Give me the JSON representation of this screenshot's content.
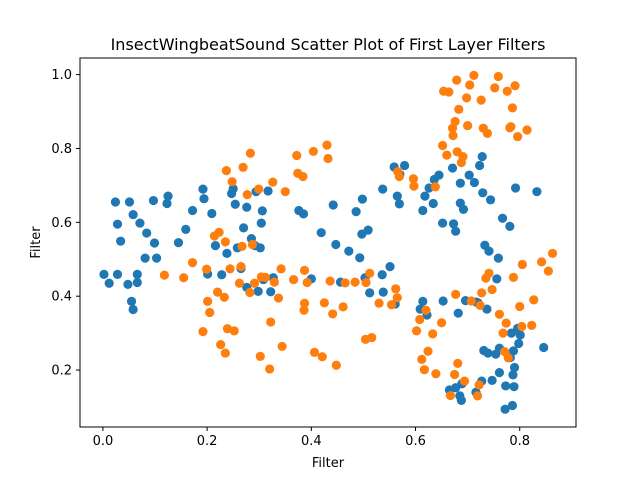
{
  "chart_data": {
    "type": "scatter",
    "title": "InsectWingbeatSound Scatter Plot of First Layer Filters",
    "xlabel": "Filter",
    "ylabel": "Filter",
    "xlim": [
      -0.044,
      0.908
    ],
    "ylim": [
      0.0458,
      1.045
    ],
    "xticks": [
      0.0,
      0.2,
      0.4,
      0.6,
      0.8
    ],
    "xtick_labels": [
      "0.0",
      "0.2",
      "0.4",
      "0.6",
      "0.8"
    ],
    "yticks": [
      0.2,
      0.4,
      0.6,
      0.8,
      1.0
    ],
    "ytick_labels": [
      "0.2",
      "0.4",
      "0.6",
      "0.8",
      "1.0"
    ],
    "grid": false,
    "legend": "none",
    "series": [
      {
        "color": "#1f77b4",
        "points": [
          [
            0.002,
            0.459
          ],
          [
            0.012,
            0.435
          ],
          [
            0.024,
            0.655
          ],
          [
            0.028,
            0.595
          ],
          [
            0.028,
            0.459
          ],
          [
            0.034,
            0.549
          ],
          [
            0.048,
            0.432
          ],
          [
            0.051,
            0.655
          ],
          [
            0.055,
            0.386
          ],
          [
            0.058,
            0.621
          ],
          [
            0.058,
            0.364
          ],
          [
            0.066,
            0.459
          ],
          [
            0.066,
            0.437
          ],
          [
            0.071,
            0.598
          ],
          [
            0.081,
            0.503
          ],
          [
            0.084,
            0.571
          ],
          [
            0.097,
            0.659
          ],
          [
            0.099,
            0.544
          ],
          [
            0.103,
            0.503
          ],
          [
            0.123,
            0.651
          ],
          [
            0.125,
            0.671
          ],
          [
            0.145,
            0.545
          ],
          [
            0.159,
            0.581
          ],
          [
            0.172,
            0.632
          ],
          [
            0.192,
            0.69
          ],
          [
            0.194,
            0.664
          ],
          [
            0.201,
            0.46
          ],
          [
            0.209,
            0.624
          ],
          [
            0.216,
            0.537
          ],
          [
            0.228,
            0.458
          ],
          [
            0.238,
            0.516
          ],
          [
            0.247,
            0.678
          ],
          [
            0.25,
            0.691
          ],
          [
            0.254,
            0.649
          ],
          [
            0.258,
            0.531
          ],
          [
            0.265,
            0.475
          ],
          [
            0.27,
            0.585
          ],
          [
            0.276,
            0.424
          ],
          [
            0.276,
            0.641
          ],
          [
            0.285,
            0.556
          ],
          [
            0.292,
            0.537
          ],
          [
            0.294,
            0.683
          ],
          [
            0.298,
            0.413
          ],
          [
            0.302,
            0.531
          ],
          [
            0.304,
            0.598
          ],
          [
            0.306,
            0.631
          ],
          [
            0.308,
            0.445
          ],
          [
            0.317,
            0.685
          ],
          [
            0.322,
            0.412
          ],
          [
            0.327,
            0.45
          ],
          [
            0.376,
            0.632
          ],
          [
            0.385,
            0.623
          ],
          [
            0.4,
            0.447
          ],
          [
            0.419,
            0.572
          ],
          [
            0.442,
            0.647
          ],
          [
            0.447,
            0.54
          ],
          [
            0.456,
            0.438
          ],
          [
            0.472,
            0.522
          ],
          [
            0.486,
            0.629
          ],
          [
            0.493,
            0.504
          ],
          [
            0.497,
            0.568
          ],
          [
            0.498,
            0.663
          ],
          [
            0.503,
            0.45
          ],
          [
            0.509,
            0.579
          ],
          [
            0.512,
            0.409
          ],
          [
            0.536,
            0.458
          ],
          [
            0.538,
            0.411
          ],
          [
            0.537,
            0.69
          ],
          [
            0.551,
            0.48
          ],
          [
            0.559,
            0.75
          ],
          [
            0.561,
            0.379
          ],
          [
            0.565,
            0.671
          ],
          [
            0.569,
            0.65
          ],
          [
            0.57,
            0.73
          ],
          [
            0.579,
            0.754
          ],
          [
            0.609,
            0.365
          ],
          [
            0.614,
            0.386
          ],
          [
            0.614,
            0.632
          ],
          [
            0.618,
            0.671
          ],
          [
            0.622,
            0.349
          ],
          [
            0.626,
            0.693
          ],
          [
            0.634,
            0.651
          ],
          [
            0.636,
            0.716
          ],
          [
            0.645,
            0.728
          ],
          [
            0.652,
            0.598
          ],
          [
            0.653,
            0.387
          ],
          [
            0.665,
            0.146
          ],
          [
            0.671,
            0.747
          ],
          [
            0.673,
            0.596
          ],
          [
            0.677,
            0.576
          ],
          [
            0.677,
            0.152
          ],
          [
            0.682,
            0.354
          ],
          [
            0.685,
            0.13
          ],
          [
            0.686,
            0.652
          ],
          [
            0.686,
            0.706
          ],
          [
            0.688,
            0.118
          ],
          [
            0.689,
            0.163
          ],
          [
            0.69,
            0.164
          ],
          [
            0.692,
            0.635
          ],
          [
            0.696,
            0.388
          ],
          [
            0.703,
            0.728
          ],
          [
            0.713,
            0.708
          ],
          [
            0.716,
            0.14
          ],
          [
            0.717,
            0.384
          ],
          [
            0.72,
            0.382
          ],
          [
            0.723,
            0.754
          ],
          [
            0.727,
            0.17
          ],
          [
            0.728,
            0.778
          ],
          [
            0.729,
            0.68
          ],
          [
            0.731,
            0.253
          ],
          [
            0.733,
            0.538
          ],
          [
            0.737,
            0.365
          ],
          [
            0.739,
            0.246
          ],
          [
            0.741,
            0.522
          ],
          [
            0.744,
            0.661
          ],
          [
            0.747,
            0.172
          ],
          [
            0.754,
            0.243
          ],
          [
            0.756,
            0.447
          ],
          [
            0.759,
            0.503
          ],
          [
            0.761,
            0.193
          ],
          [
            0.761,
            0.259
          ],
          [
            0.767,
            0.611
          ],
          [
            0.772,
            0.094
          ],
          [
            0.773,
            0.157
          ],
          [
            0.781,
            0.589
          ],
          [
            0.782,
            0.234
          ],
          [
            0.784,
            0.3
          ],
          [
            0.786,
            0.104
          ],
          [
            0.787,
            0.187
          ],
          [
            0.788,
            0.252
          ],
          [
            0.789,
            0.155
          ],
          [
            0.79,
            0.207
          ],
          [
            0.792,
            0.693
          ],
          [
            0.796,
            0.313
          ],
          [
            0.798,
            0.272
          ],
          [
            0.801,
            0.295
          ],
          [
            0.833,
            0.683
          ],
          [
            0.846,
            0.261
          ]
        ]
      },
      {
        "color": "#ff7f0e",
        "points": [
          [
            0.118,
            0.457
          ],
          [
            0.155,
            0.45
          ],
          [
            0.172,
            0.491
          ],
          [
            0.192,
            0.304
          ],
          [
            0.199,
            0.473
          ],
          [
            0.201,
            0.386
          ],
          [
            0.205,
            0.356
          ],
          [
            0.214,
            0.563
          ],
          [
            0.22,
            0.411
          ],
          [
            0.223,
            0.573
          ],
          [
            0.226,
            0.269
          ],
          [
            0.233,
            0.397
          ],
          [
            0.235,
            0.246
          ],
          [
            0.235,
            0.547
          ],
          [
            0.237,
            0.74
          ],
          [
            0.239,
            0.312
          ],
          [
            0.244,
            0.474
          ],
          [
            0.248,
            0.71
          ],
          [
            0.252,
            0.306
          ],
          [
            0.262,
            0.435
          ],
          [
            0.265,
            0.48
          ],
          [
            0.267,
            0.535
          ],
          [
            0.269,
            0.749
          ],
          [
            0.277,
            0.675
          ],
          [
            0.282,
            0.41
          ],
          [
            0.283,
            0.787
          ],
          [
            0.287,
            0.54
          ],
          [
            0.291,
            0.435
          ],
          [
            0.299,
            0.69
          ],
          [
            0.302,
            0.237
          ],
          [
            0.304,
            0.452
          ],
          [
            0.312,
            0.451
          ],
          [
            0.32,
            0.203
          ],
          [
            0.322,
            0.33
          ],
          [
            0.326,
            0.709
          ],
          [
            0.329,
            0.438
          ],
          [
            0.337,
            0.395
          ],
          [
            0.342,
            0.474
          ],
          [
            0.344,
            0.264
          ],
          [
            0.35,
            0.683
          ],
          [
            0.366,
            0.445
          ],
          [
            0.372,
            0.781
          ],
          [
            0.374,
            0.733
          ],
          [
            0.384,
            0.724
          ],
          [
            0.386,
            0.362
          ],
          [
            0.387,
            0.381
          ],
          [
            0.387,
            0.47
          ],
          [
            0.392,
            0.437
          ],
          [
            0.404,
            0.792
          ],
          [
            0.406,
            0.248
          ],
          [
            0.421,
            0.236
          ],
          [
            0.425,
            0.382
          ],
          [
            0.43,
            0.809
          ],
          [
            0.432,
            0.773
          ],
          [
            0.436,
            0.441
          ],
          [
            0.441,
            0.352
          ],
          [
            0.448,
            0.213
          ],
          [
            0.461,
            0.371
          ],
          [
            0.465,
            0.436
          ],
          [
            0.484,
            0.438
          ],
          [
            0.504,
            0.283
          ],
          [
            0.505,
            0.437
          ],
          [
            0.512,
            0.462
          ],
          [
            0.516,
            0.288
          ],
          [
            0.53,
            0.381
          ],
          [
            0.554,
            0.377
          ],
          [
            0.562,
            0.42
          ],
          [
            0.565,
            0.396
          ],
          [
            0.566,
            0.737
          ],
          [
            0.569,
            0.724
          ],
          [
            0.596,
            0.718
          ],
          [
            0.597,
            0.698
          ],
          [
            0.602,
            0.306
          ],
          [
            0.608,
            0.337
          ],
          [
            0.612,
            0.229
          ],
          [
            0.617,
            0.201
          ],
          [
            0.62,
            0.362
          ],
          [
            0.624,
            0.251
          ],
          [
            0.633,
            0.298
          ],
          [
            0.638,
            0.696
          ],
          [
            0.639,
            0.19
          ],
          [
            0.65,
            0.328
          ],
          [
            0.652,
            0.808
          ],
          [
            0.654,
            0.955
          ],
          [
            0.66,
            0.782
          ],
          [
            0.664,
            0.953
          ],
          [
            0.667,
            0.131
          ],
          [
            0.671,
            0.855
          ],
          [
            0.672,
            0.835
          ],
          [
            0.675,
            0.188
          ],
          [
            0.676,
            0.873
          ],
          [
            0.677,
            0.405
          ],
          [
            0.679,
            0.985
          ],
          [
            0.68,
            0.791
          ],
          [
            0.681,
            0.218
          ],
          [
            0.683,
            0.906
          ],
          [
            0.688,
            0.762
          ],
          [
            0.691,
            0.778
          ],
          [
            0.694,
            0.17
          ],
          [
            0.698,
            0.937
          ],
          [
            0.7,
            0.862
          ],
          [
            0.704,
            0.972
          ],
          [
            0.707,
            0.387
          ],
          [
            0.712,
            0.998
          ],
          [
            0.719,
            0.13
          ],
          [
            0.722,
            0.16
          ],
          [
            0.724,
            0.375
          ],
          [
            0.726,
            0.931
          ],
          [
            0.727,
            0.409
          ],
          [
            0.73,
            0.855
          ],
          [
            0.735,
            0.449
          ],
          [
            0.738,
            0.841
          ],
          [
            0.741,
            0.462
          ],
          [
            0.747,
            0.418
          ],
          [
            0.752,
            0.964
          ],
          [
            0.759,
            0.995
          ],
          [
            0.761,
            0.351
          ],
          [
            0.768,
            0.3
          ],
          [
            0.771,
            0.25
          ],
          [
            0.774,
            0.327
          ],
          [
            0.776,
            0.955
          ],
          [
            0.778,
            0.233
          ],
          [
            0.781,
            0.856
          ],
          [
            0.783,
            0.859
          ],
          [
            0.786,
            0.91
          ],
          [
            0.788,
            0.451
          ],
          [
            0.791,
            0.97
          ],
          [
            0.796,
            0.832
          ],
          [
            0.8,
            0.372
          ],
          [
            0.804,
            0.318
          ],
          [
            0.805,
            0.486
          ],
          [
            0.814,
            0.85
          ],
          [
            0.823,
            0.321
          ],
          [
            0.827,
            0.39
          ],
          [
            0.842,
            0.493
          ],
          [
            0.855,
            0.468
          ],
          [
            0.863,
            0.516
          ]
        ]
      }
    ]
  }
}
